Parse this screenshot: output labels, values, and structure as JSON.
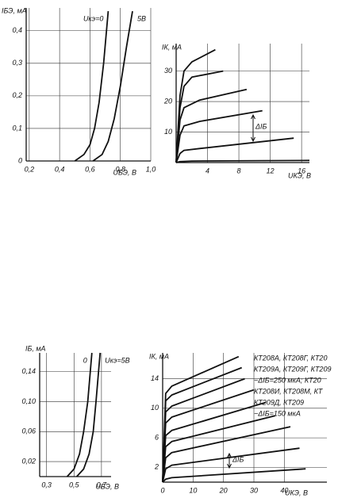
{
  "chart_data": [
    {
      "type": "line",
      "y_label": "IБЭ, мА",
      "x_label": "UБЭ, В",
      "grid": true,
      "color": "#111",
      "xlim": [
        0.18,
        1.0
      ],
      "ylim": [
        0,
        0.47
      ],
      "xticks": [
        {
          "value": 0.2,
          "label": "0,2"
        },
        {
          "value": 0.4,
          "label": "0,4"
        },
        {
          "value": 0.6,
          "label": "0,6"
        },
        {
          "value": 0.8,
          "label": "0,8"
        },
        {
          "value": 1.0,
          "label": "1,0"
        }
      ],
      "yticks": [
        0,
        {
          "value": 0.1,
          "label": "0,1"
        },
        {
          "value": 0.2,
          "label": "0,2"
        },
        {
          "value": 0.3,
          "label": "0,3"
        },
        {
          "value": 0.4,
          "label": "0,4"
        }
      ],
      "series": [
        {
          "name": "Uкэ=0",
          "x": [
            0.5,
            0.56,
            0.6,
            0.63,
            0.66,
            0.69,
            0.72
          ],
          "values": [
            0,
            0.02,
            0.05,
            0.1,
            0.18,
            0.3,
            0.46
          ]
        },
        {
          "name": "5В",
          "x": [
            0.62,
            0.68,
            0.72,
            0.76,
            0.8,
            0.84,
            0.88
          ],
          "values": [
            0,
            0.02,
            0.06,
            0.13,
            0.23,
            0.35,
            0.46
          ]
        }
      ]
    },
    {
      "type": "line",
      "y_label": "IК, мА",
      "x_label": "UКЭ, В",
      "grid": true,
      "color": "#111",
      "xlim": [
        0,
        17
      ],
      "ylim": [
        0,
        39
      ],
      "xticks": [
        4,
        8,
        12,
        16
      ],
      "yticks": [
        10,
        20,
        30
      ],
      "annotations": [
        "ΔIБ"
      ],
      "series": [
        {
          "x": [
            0,
            0.5,
            2,
            17
          ],
          "values": [
            0,
            0.3,
            0.5,
            0.7
          ]
        },
        {
          "x": [
            0,
            0.5,
            1,
            3,
            15
          ],
          "values": [
            0,
            3,
            4,
            4.6,
            8
          ]
        },
        {
          "x": [
            0,
            0.5,
            1,
            3,
            11
          ],
          "values": [
            0,
            9,
            12,
            13.5,
            17
          ]
        },
        {
          "x": [
            0,
            0.5,
            1,
            3,
            9
          ],
          "values": [
            0,
            14,
            18,
            20.5,
            24
          ]
        },
        {
          "x": [
            0,
            0.5,
            1,
            2,
            6
          ],
          "values": [
            0,
            18,
            25,
            28,
            30
          ]
        },
        {
          "x": [
            0,
            0.5,
            1,
            2,
            5
          ],
          "values": [
            0,
            22,
            30,
            33,
            37
          ]
        }
      ]
    },
    {
      "type": "line",
      "y_label": "IБ, мА",
      "x_label": "UБЭ, В",
      "grid": true,
      "color": "#111",
      "xlim": [
        0.25,
        0.77
      ],
      "ylim": [
        0,
        0.165
      ],
      "xticks": [
        {
          "value": 0.3,
          "label": "0,3"
        },
        {
          "value": 0.5,
          "label": "0,5"
        },
        {
          "value": 0.7,
          "label": "0,7"
        }
      ],
      "yticks": [
        {
          "value": 0.02,
          "label": "0,02"
        },
        {
          "value": 0.06,
          "label": "0,06"
        },
        {
          "value": 0.1,
          "label": "0,10"
        },
        {
          "value": 0.14,
          "label": "0,14"
        }
      ],
      "series": [
        {
          "name": "0",
          "x": [
            0.45,
            0.5,
            0.54,
            0.57,
            0.6,
            0.63
          ],
          "values": [
            0,
            0.01,
            0.03,
            0.06,
            0.1,
            0.165
          ]
        },
        {
          "name": "Uкэ=5В",
          "x": [
            0.52,
            0.57,
            0.61,
            0.64,
            0.66,
            0.69
          ],
          "values": [
            0,
            0.01,
            0.03,
            0.06,
            0.1,
            0.165
          ]
        }
      ]
    },
    {
      "type": "line",
      "y_label": "IК, мА",
      "x_label": "UКЭ, В",
      "grid": true,
      "color": "#111",
      "xlim": [
        0,
        54
      ],
      "ylim": [
        0,
        17.5
      ],
      "xticks": [
        0,
        10,
        20,
        30,
        40
      ],
      "yticks": [
        2,
        6,
        10,
        14
      ],
      "annotations": [
        "КТ208А, КТ208Г, КТ20",
        "КТ209А, КТ209Г, КТ209",
        "−ΔIБ=250 мкА; КТ20",
        "КТ208И, КТ208М, КТ",
        "КТ209Д, КТ209",
        "−ΔIБ=150 мкА",
        "ΔIБ"
      ],
      "series": [
        {
          "x": [
            0,
            1,
            3,
            47
          ],
          "values": [
            0,
            0.4,
            0.6,
            1.8
          ]
        },
        {
          "x": [
            0,
            1,
            3,
            45
          ],
          "values": [
            0,
            1.8,
            2.3,
            4.6
          ]
        },
        {
          "x": [
            0,
            1,
            3,
            42
          ],
          "values": [
            0,
            3.3,
            4,
            7.5
          ]
        },
        {
          "x": [
            0,
            1,
            3,
            37
          ],
          "values": [
            0,
            4.8,
            5.5,
            9
          ]
        },
        {
          "x": [
            0,
            1,
            3,
            34
          ],
          "values": [
            0,
            6.3,
            7,
            10.8
          ]
        },
        {
          "x": [
            0,
            1,
            3,
            30
          ],
          "values": [
            0,
            8,
            8.8,
            12.5
          ]
        },
        {
          "x": [
            0,
            1,
            3,
            27
          ],
          "values": [
            0,
            9.5,
            10.3,
            14
          ]
        },
        {
          "x": [
            0,
            1,
            3,
            26
          ],
          "values": [
            0,
            11,
            11.8,
            15.5
          ]
        },
        {
          "x": [
            0,
            1,
            3,
            25
          ],
          "values": [
            0,
            12,
            13,
            17
          ]
        }
      ]
    }
  ]
}
